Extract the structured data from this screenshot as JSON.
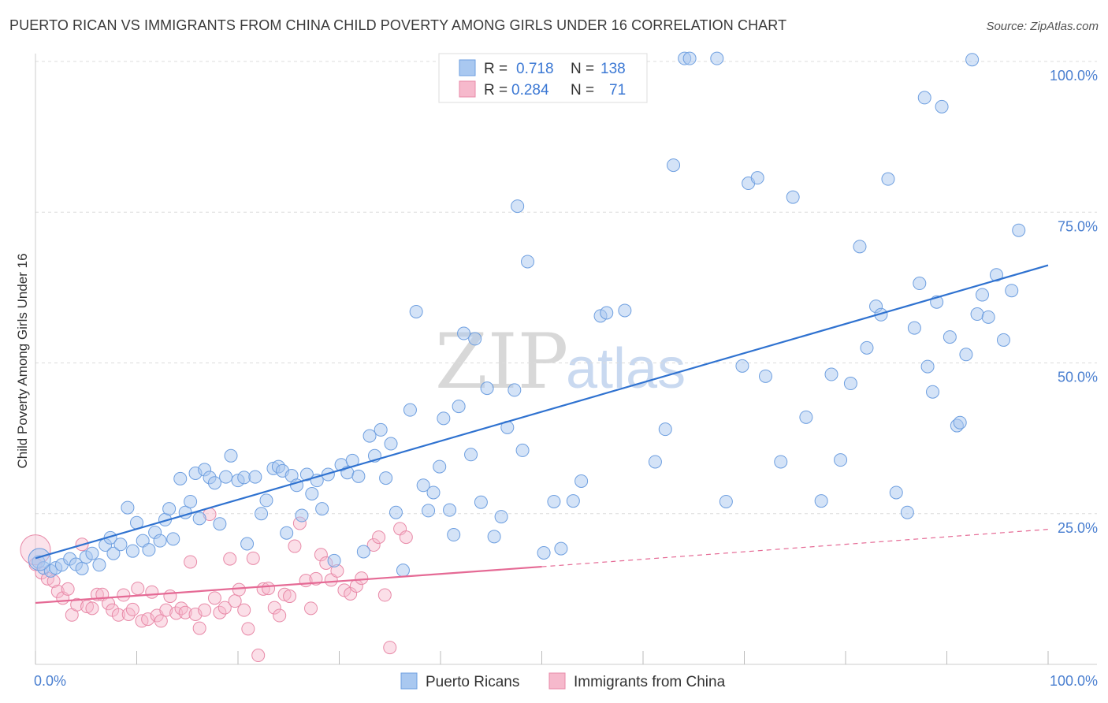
{
  "header": {
    "title": "PUERTO RICAN VS IMMIGRANTS FROM CHINA CHILD POVERTY AMONG GIRLS UNDER 16 CORRELATION CHART",
    "source": "Source: ZipAtlas.com"
  },
  "watermark": {
    "part1": "ZIP",
    "part2": "atlas"
  },
  "legend_box": {
    "rows": [
      {
        "r_label": "R =",
        "r_value": "0.718",
        "n_label": "N =",
        "n_value": "138",
        "color": "#a9c8f0"
      },
      {
        "r_label": "R =",
        "r_value": "0.284",
        "n_label": "N =",
        "n_value": "71",
        "color": "#f6b9cc"
      }
    ]
  },
  "bottom_legend": {
    "items": [
      {
        "label": "Puerto Ricans",
        "color": "#a9c8f0"
      },
      {
        "label": "Immigrants from China",
        "color": "#f6b9cc"
      }
    ]
  },
  "chart_data": {
    "type": "scatter",
    "title": "PUERTO RICAN VS IMMIGRANTS FROM CHINA CHILD POVERTY AMONG GIRLS UNDER 16 CORRELATION CHART",
    "xlabel": "",
    "ylabel": "Child Poverty Among Girls Under 16",
    "xlim": [
      0,
      100
    ],
    "ylim": [
      0,
      100
    ],
    "x_tick_labels": [
      "0.0%",
      "100.0%"
    ],
    "y_tick_labels": [
      "25.0%",
      "50.0%",
      "75.0%",
      "100.0%"
    ],
    "y_ticks": [
      25,
      50,
      75,
      100
    ],
    "grid": true,
    "legend_position": "top-center",
    "colors": {
      "blue_fill": "#a9c8f0",
      "blue_stroke": "#6e9fe0",
      "blue_line": "#2f72d0",
      "pink_fill": "#f6b9cc",
      "pink_stroke": "#e88aa8",
      "pink_line": "#e56a95"
    },
    "series": [
      {
        "name": "Puerto Ricans",
        "trend": {
          "x": [
            0,
            100
          ],
          "y": [
            17.6,
            66.2
          ],
          "dashed_to": null
        },
        "points": [
          [
            0.3,
            17.0
          ],
          [
            0.8,
            16.0
          ],
          [
            1.5,
            15.5
          ],
          [
            2.0,
            16.0
          ],
          [
            2.6,
            16.5
          ],
          [
            3.4,
            17.5
          ],
          [
            4.0,
            16.6
          ],
          [
            4.6,
            15.9
          ],
          [
            5.0,
            17.8
          ],
          [
            5.6,
            18.4
          ],
          [
            6.3,
            16.5
          ],
          [
            6.9,
            19.8
          ],
          [
            7.4,
            21.0
          ],
          [
            7.7,
            18.4
          ],
          [
            8.4,
            19.9
          ],
          [
            9.1,
            26.0
          ],
          [
            9.6,
            18.8
          ],
          [
            10.0,
            23.5
          ],
          [
            10.6,
            20.5
          ],
          [
            11.2,
            19.0
          ],
          [
            11.8,
            21.9
          ],
          [
            12.3,
            20.5
          ],
          [
            12.8,
            24.0
          ],
          [
            13.2,
            25.8
          ],
          [
            13.6,
            20.8
          ],
          [
            14.3,
            30.8
          ],
          [
            14.8,
            25.2
          ],
          [
            15.3,
            27.0
          ],
          [
            15.8,
            31.7
          ],
          [
            16.2,
            24.2
          ],
          [
            16.7,
            32.3
          ],
          [
            17.2,
            31.0
          ],
          [
            17.7,
            30.1
          ],
          [
            18.2,
            23.3
          ],
          [
            18.8,
            31.1
          ],
          [
            19.3,
            34.6
          ],
          [
            20.0,
            30.5
          ],
          [
            20.6,
            31.0
          ],
          [
            20.9,
            20.0
          ],
          [
            21.7,
            31.1
          ],
          [
            22.3,
            25.0
          ],
          [
            22.8,
            27.2
          ],
          [
            23.5,
            32.5
          ],
          [
            24.0,
            32.8
          ],
          [
            24.4,
            32.1
          ],
          [
            24.8,
            21.8
          ],
          [
            25.3,
            31.3
          ],
          [
            25.8,
            29.7
          ],
          [
            26.3,
            24.7
          ],
          [
            26.8,
            31.5
          ],
          [
            27.3,
            28.3
          ],
          [
            27.8,
            30.5
          ],
          [
            28.3,
            25.8
          ],
          [
            28.9,
            31.5
          ],
          [
            29.5,
            17.2
          ],
          [
            30.2,
            33.1
          ],
          [
            30.8,
            31.8
          ],
          [
            31.3,
            33.8
          ],
          [
            31.9,
            31.2
          ],
          [
            32.4,
            18.7
          ],
          [
            33.0,
            37.9
          ],
          [
            33.5,
            34.6
          ],
          [
            34.1,
            38.9
          ],
          [
            34.6,
            30.9
          ],
          [
            35.1,
            36.6
          ],
          [
            35.6,
            25.2
          ],
          [
            36.3,
            15.6
          ],
          [
            37.0,
            42.2
          ],
          [
            37.6,
            58.5
          ],
          [
            38.3,
            29.7
          ],
          [
            38.8,
            25.5
          ],
          [
            39.3,
            28.5
          ],
          [
            39.9,
            32.8
          ],
          [
            40.3,
            40.8
          ],
          [
            40.9,
            25.6
          ],
          [
            41.3,
            21.5
          ],
          [
            41.8,
            42.8
          ],
          [
            42.3,
            54.9
          ],
          [
            43.0,
            34.8
          ],
          [
            43.4,
            54.0
          ],
          [
            44.0,
            26.9
          ],
          [
            44.6,
            45.8
          ],
          [
            45.3,
            21.2
          ],
          [
            46.0,
            24.5
          ],
          [
            46.6,
            39.3
          ],
          [
            47.3,
            45.5
          ],
          [
            47.6,
            76.0
          ],
          [
            48.1,
            35.5
          ],
          [
            48.6,
            66.8
          ],
          [
            50.2,
            18.5
          ],
          [
            51.2,
            27.0
          ],
          [
            51.9,
            19.2
          ],
          [
            53.1,
            27.1
          ],
          [
            53.9,
            30.4
          ],
          [
            55.8,
            57.8
          ],
          [
            56.4,
            58.3
          ],
          [
            58.2,
            58.7
          ],
          [
            61.2,
            33.6
          ],
          [
            62.2,
            39.0
          ],
          [
            63.0,
            82.8
          ],
          [
            64.1,
            100.5
          ],
          [
            64.6,
            100.5
          ],
          [
            67.3,
            100.5
          ],
          [
            68.2,
            27.0
          ],
          [
            69.8,
            49.5
          ],
          [
            70.4,
            79.8
          ],
          [
            71.3,
            80.7
          ],
          [
            72.1,
            47.8
          ],
          [
            73.6,
            33.6
          ],
          [
            74.8,
            77.5
          ],
          [
            76.1,
            41.0
          ],
          [
            77.6,
            27.1
          ],
          [
            78.6,
            48.1
          ],
          [
            79.5,
            33.9
          ],
          [
            80.5,
            46.6
          ],
          [
            81.4,
            69.3
          ],
          [
            82.1,
            52.5
          ],
          [
            83.0,
            59.4
          ],
          [
            83.5,
            58.0
          ],
          [
            84.2,
            80.5
          ],
          [
            85.0,
            28.5
          ],
          [
            86.1,
            25.2
          ],
          [
            86.8,
            55.8
          ],
          [
            87.3,
            63.2
          ],
          [
            87.8,
            94.0
          ],
          [
            88.1,
            49.4
          ],
          [
            88.6,
            45.2
          ],
          [
            89.0,
            60.1
          ],
          [
            89.5,
            92.5
          ],
          [
            90.3,
            54.3
          ],
          [
            91.0,
            39.6
          ],
          [
            91.3,
            40.1
          ],
          [
            91.9,
            51.4
          ],
          [
            92.5,
            100.3
          ],
          [
            93.0,
            58.1
          ],
          [
            93.5,
            61.3
          ],
          [
            94.1,
            57.6
          ],
          [
            94.9,
            64.6
          ],
          [
            95.6,
            53.8
          ],
          [
            96.4,
            62.0
          ],
          [
            97.1,
            72.0
          ]
        ]
      },
      {
        "name": "Immigrants from China",
        "trend": {
          "x": [
            0,
            50
          ],
          "y": [
            10.2,
            16.2
          ],
          "dashed_to": [
            100,
            22.4
          ]
        },
        "points": [
          [
            0.0,
            16.6
          ],
          [
            0.6,
            15.2
          ],
          [
            1.2,
            14.2
          ],
          [
            1.8,
            13.8
          ],
          [
            2.2,
            12.1
          ],
          [
            2.7,
            11.0
          ],
          [
            3.2,
            12.5
          ],
          [
            3.6,
            8.2
          ],
          [
            4.1,
            9.9
          ],
          [
            4.6,
            19.9
          ],
          [
            5.1,
            9.6
          ],
          [
            5.6,
            9.3
          ],
          [
            6.1,
            11.6
          ],
          [
            6.6,
            11.6
          ],
          [
            7.2,
            10.1
          ],
          [
            7.6,
            9.0
          ],
          [
            8.2,
            8.2
          ],
          [
            8.7,
            11.5
          ],
          [
            9.2,
            8.3
          ],
          [
            9.6,
            9.1
          ],
          [
            10.1,
            12.6
          ],
          [
            10.5,
            7.2
          ],
          [
            11.1,
            7.5
          ],
          [
            11.5,
            12.0
          ],
          [
            12.0,
            8.1
          ],
          [
            12.4,
            7.2
          ],
          [
            12.9,
            9.0
          ],
          [
            13.3,
            11.3
          ],
          [
            13.9,
            8.5
          ],
          [
            14.4,
            9.3
          ],
          [
            14.8,
            8.6
          ],
          [
            15.3,
            17.0
          ],
          [
            15.8,
            8.3
          ],
          [
            16.2,
            6.0
          ],
          [
            16.7,
            9.0
          ],
          [
            17.2,
            24.9
          ],
          [
            17.7,
            11.0
          ],
          [
            18.2,
            8.6
          ],
          [
            18.7,
            9.4
          ],
          [
            19.2,
            17.5
          ],
          [
            19.7,
            10.5
          ],
          [
            20.1,
            12.4
          ],
          [
            20.6,
            9.0
          ],
          [
            21.0,
            5.9
          ],
          [
            21.5,
            17.6
          ],
          [
            22.0,
            1.5
          ],
          [
            22.5,
            12.5
          ],
          [
            23.0,
            12.6
          ],
          [
            23.6,
            9.4
          ],
          [
            24.1,
            8.1
          ],
          [
            24.6,
            11.6
          ],
          [
            25.1,
            11.3
          ],
          [
            25.6,
            19.6
          ],
          [
            26.1,
            23.4
          ],
          [
            26.7,
            13.9
          ],
          [
            27.2,
            9.3
          ],
          [
            27.7,
            14.2
          ],
          [
            28.2,
            18.2
          ],
          [
            28.7,
            16.8
          ],
          [
            29.2,
            14.0
          ],
          [
            29.8,
            15.5
          ],
          [
            30.5,
            12.3
          ],
          [
            31.1,
            11.7
          ],
          [
            31.7,
            13.0
          ],
          [
            32.2,
            14.3
          ],
          [
            33.4,
            19.8
          ],
          [
            33.9,
            21.1
          ],
          [
            34.5,
            11.5
          ],
          [
            35.0,
            2.8
          ],
          [
            36.0,
            22.5
          ],
          [
            36.6,
            21.1
          ]
        ]
      }
    ]
  }
}
